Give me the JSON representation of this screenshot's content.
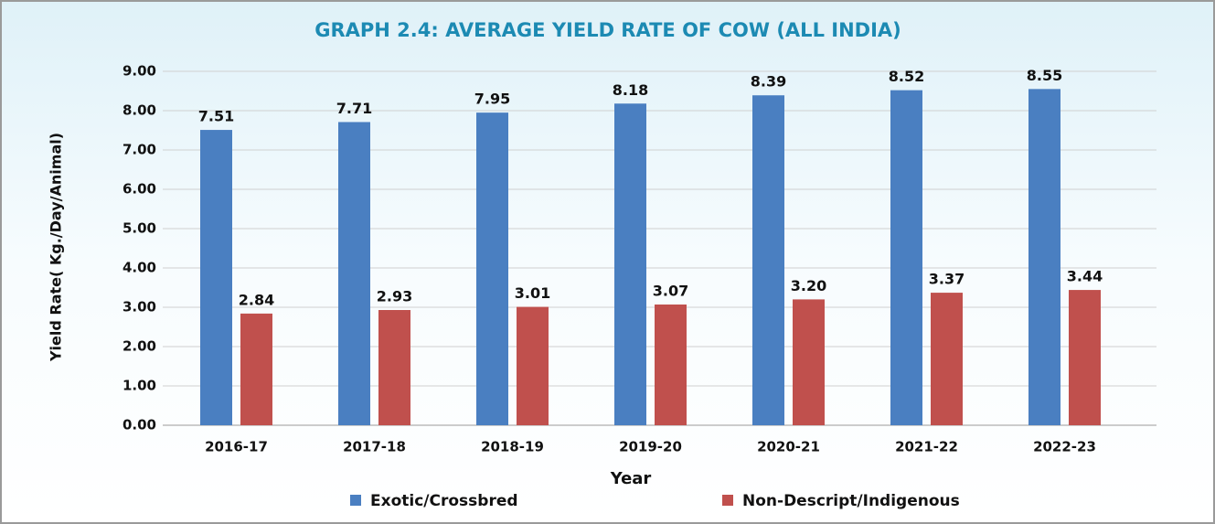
{
  "chart_data": {
    "type": "bar",
    "title": "GRAPH 2.4: AVERAGE YIELD RATE OF COW (ALL INDIA)",
    "x_label": "Year",
    "y_label": "Yield Rate( Kg./Day/Animal)",
    "categories": [
      "2016-17",
      "2017-18",
      "2018-19",
      "2019-20",
      "2020-21",
      "2021-22",
      "2022-23"
    ],
    "series": [
      {
        "name": "Exotic/Crossbred",
        "color": "#4a7fc1",
        "values": [
          7.51,
          7.71,
          7.95,
          8.18,
          8.39,
          8.52,
          8.55
        ],
        "value_labels": [
          "7.51",
          "7.71",
          "7.95",
          "8.18",
          "8.39",
          "8.52",
          "8.55"
        ]
      },
      {
        "name": "Non-Descript/Indigenous",
        "color": "#c0504d",
        "values": [
          2.84,
          2.93,
          3.01,
          3.07,
          3.2,
          3.37,
          3.44
        ],
        "value_labels": [
          "2.84",
          "2.93",
          "3.01",
          "3.07",
          "3.20",
          "3.37",
          "3.44"
        ]
      }
    ],
    "ylim": [
      0,
      9
    ],
    "yticks": [
      {
        "value": 0,
        "label": "0.00"
      },
      {
        "value": 1,
        "label": "1.00"
      },
      {
        "value": 2,
        "label": "2.00"
      },
      {
        "value": 3,
        "label": "3.00"
      },
      {
        "value": 4,
        "label": "4.00"
      },
      {
        "value": 5,
        "label": "5.00"
      },
      {
        "value": 6,
        "label": "6.00"
      },
      {
        "value": 7,
        "label": "7.00"
      },
      {
        "value": 8,
        "label": "8.00"
      },
      {
        "value": 9,
        "label": "9.00"
      }
    ],
    "grid": true,
    "legend": "bottom"
  }
}
